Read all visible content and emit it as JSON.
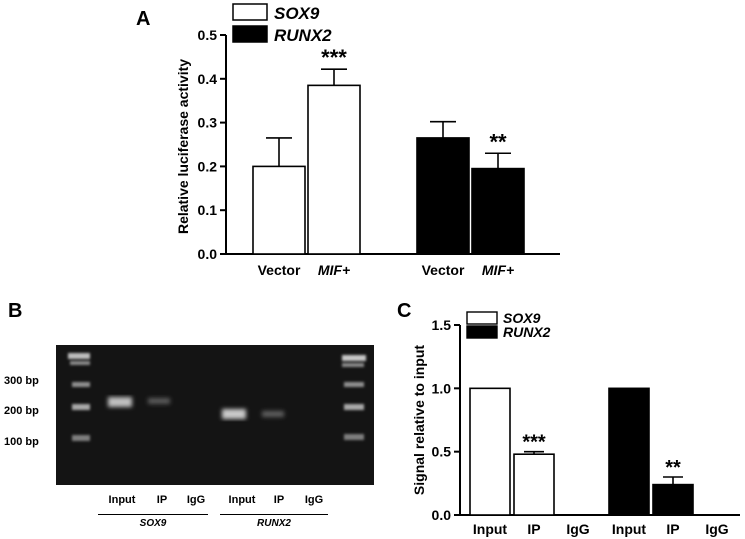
{
  "panels": {
    "a_label": "A",
    "b_label": "B",
    "c_label": "C"
  },
  "chart_data": [
    {
      "type": "bar",
      "panel": "A",
      "ylabel": "Relative luciferase activity",
      "ylim": [
        0,
        0.5
      ],
      "yticks": [
        "0.0",
        "0.1",
        "0.2",
        "0.3",
        "0.4",
        "0.5"
      ],
      "categories": [
        "Vector",
        "MIF+"
      ],
      "italic_categories": [
        false,
        true
      ],
      "series": [
        {
          "name": "SOX9",
          "color": "#ffffff",
          "values": [
            0.2,
            0.385
          ],
          "errors": [
            0.065,
            0.037
          ],
          "significance": [
            "",
            "***"
          ]
        },
        {
          "name": "RUNX2",
          "color": "#000000",
          "values": [
            0.265,
            0.195
          ],
          "errors": [
            0.037,
            0.035
          ],
          "significance": [
            "",
            "**"
          ]
        }
      ],
      "legend": "top"
    },
    {
      "type": "bar",
      "panel": "C",
      "ylabel": "Signal relative to input",
      "ylim": [
        0,
        1.5
      ],
      "yticks": [
        "0.0",
        "0.5",
        "1.0",
        "1.5"
      ],
      "categories": [
        "Input",
        "IP",
        "IgG"
      ],
      "series": [
        {
          "name": "SOX9",
          "color": "#ffffff",
          "values": [
            1.0,
            0.48,
            0.0
          ],
          "errors": [
            0,
            0.02,
            0
          ],
          "significance": [
            "",
            "***",
            ""
          ]
        },
        {
          "name": "RUNX2",
          "color": "#000000",
          "values": [
            1.0,
            0.24,
            0.0
          ],
          "errors": [
            0,
            0.06,
            0
          ],
          "significance": [
            "",
            "**",
            ""
          ]
        }
      ],
      "legend": "top-left"
    }
  ],
  "gel": {
    "ladder_labels": [
      "300 bp",
      "200 bp",
      "100 bp"
    ],
    "lanes": [
      "Input",
      "IP",
      "IgG",
      "Input",
      "IP",
      "IgG"
    ],
    "groups": [
      "SOX9",
      "RUNX2"
    ]
  }
}
